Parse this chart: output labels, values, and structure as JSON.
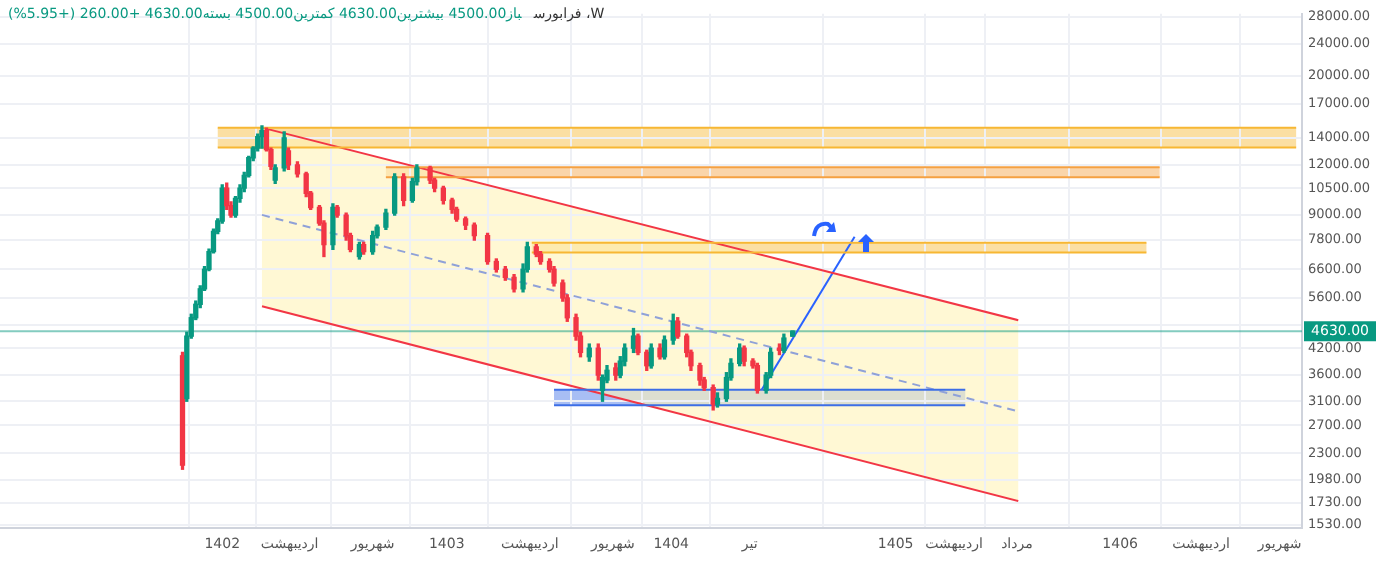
{
  "chart_data": {
    "type": "candlestick",
    "title": "W، فرابورس",
    "subtitle": "باز4500.00 بیشترین4630.00 کمترین4500.00 بسته4630.00 +260.00 (+5.95%)",
    "log": true,
    "grid": true,
    "xlim": [
      1401.01,
      1406.81
    ],
    "xticks": [
      1402,
      {
        "value": 1402.3,
        "label": "اردیبهشت"
      },
      {
        "value": 1402.67,
        "label": "شهریور"
      },
      1403,
      {
        "value": 1403.37,
        "label": "اردیبهشت"
      },
      {
        "value": 1403.74,
        "label": "شهریور"
      },
      1404,
      {
        "value": 1404.35,
        "label": "تیر"
      },
      1405,
      {
        "value": 1405.26,
        "label": "اردیبهشت"
      },
      {
        "value": 1405.54,
        "label": "مرداد"
      },
      1406,
      {
        "value": 1406.36,
        "label": "اردیبهشت"
      },
      {
        "value": 1406.71,
        "label": "شهریور"
      }
    ],
    "ylim": [
      1500,
      28500
    ],
    "yticks": [
      {
        "value": 28000,
        "label": "28000.00"
      },
      {
        "value": 24000,
        "label": "24000.00"
      },
      {
        "value": 20000,
        "label": "20000.00"
      },
      {
        "value": 17000,
        "label": "17000.00"
      },
      {
        "value": 14000,
        "label": "14000.00"
      },
      {
        "value": 12000,
        "label": "12000.00"
      },
      {
        "value": 10500,
        "label": "10500.00"
      },
      {
        "value": 9000,
        "label": "9000.00"
      },
      {
        "value": 7800,
        "label": "7800.00"
      },
      {
        "value": 6600,
        "label": "6600.00"
      },
      {
        "value": 5600,
        "label": "5600.00"
      },
      {
        "value": 4800,
        "label": null
      },
      {
        "value": 4200,
        "label": "4200.00"
      },
      {
        "value": 3600,
        "label": "3600.00"
      },
      {
        "value": 3100,
        "label": "3100.00"
      },
      {
        "value": 2700,
        "label": "2700.00"
      },
      {
        "value": 2300,
        "label": "2300.00"
      },
      {
        "value": 1980,
        "label": "1980.00"
      },
      {
        "value": 1730,
        "label": "1730.00"
      },
      {
        "value": 1530,
        "label": "1530.00"
      }
    ],
    "ref_lines": [
      {
        "axis": "y",
        "value": 4630,
        "label": "4630.00",
        "color": "#089981"
      }
    ],
    "series": [
      {
        "type": "line",
        "x": [
          1401.98,
          1406.784
        ],
        "values": [
          14850,
          14850
        ],
        "color": "#f7b733"
      },
      {
        "type": "line",
        "x": [
          1401.98,
          1406.784
        ],
        "values": [
          13250,
          13250
        ],
        "color": "#f7b733"
      },
      {
        "type": "line",
        "x": [
          1402.729,
          1406.176
        ],
        "values": [
          11830,
          11830
        ],
        "color": "#f5a142"
      },
      {
        "type": "line",
        "x": [
          1402.729,
          1406.176
        ],
        "values": [
          11180,
          11180
        ],
        "color": "#f5a142"
      },
      {
        "type": "line",
        "x": [
          1403.379,
          1406.117
        ],
        "values": [
          7680,
          7680
        ],
        "color": "#f7b733"
      },
      {
        "type": "line",
        "x": [
          1403.379,
          1406.117
        ],
        "values": [
          7260,
          7260
        ],
        "color": "#f7b733"
      },
      {
        "type": "line",
        "x": [
          1403.478,
          1405.31
        ],
        "values": [
          3310,
          3310
        ],
        "color": "#3d6ee6"
      },
      {
        "type": "line",
        "x": [
          1403.478,
          1405.31
        ],
        "values": [
          3030,
          3030
        ],
        "color": "#3d6ee6"
      },
      {
        "type": "line",
        "x": [
          1402.177,
          1405.546
        ],
        "values": [
          14850,
          4930
        ],
        "color": "#f23645"
      },
      {
        "type": "line",
        "x": [
          1402.177,
          1405.546
        ],
        "values": [
          5340,
          1750
        ],
        "color": "#f23645"
      },
      {
        "type": "line",
        "x": [
          1402.177,
          1405.546
        ],
        "values": [
          9010,
          2925
        ],
        "color": "#8fa1d8",
        "line_style": "dashed"
      },
      {
        "type": "line",
        "x": [
          1404.403,
          1404.817
        ],
        "values": [
          3310,
          7950
        ],
        "color": "#2962ff"
      },
      {
        "x": [
          1401.823,
          1401.842,
          1401.862,
          1401.882,
          1401.902,
          1401.921,
          1401.941,
          1401.961,
          1401.98,
          1402.0,
          1402.02,
          1402.039,
          1402.059,
          1402.079,
          1402.098,
          1402.118,
          1402.138,
          1402.158,
          1402.177,
          1402.197,
          1402.217,
          1402.236,
          1402.276,
          1402.295,
          1402.335,
          1402.374,
          1402.394,
          1402.433,
          1402.453,
          1402.493,
          1402.512,
          1402.552,
          1402.571,
          1402.611,
          1402.63,
          1402.67,
          1402.69,
          1402.729,
          1402.768,
          1402.808,
          1402.847,
          1402.867,
          1402.926,
          1402.946,
          1402.985,
          1403.024,
          1403.044,
          1403.084,
          1403.123,
          1403.182,
          1403.221,
          1403.261,
          1403.3,
          1403.34,
          1403.359,
          1403.399,
          1403.418,
          1403.458,
          1403.478,
          1403.517,
          1403.537,
          1403.576,
          1403.596,
          1403.635,
          1403.675,
          1403.694,
          1403.714,
          1403.753,
          1403.773,
          1403.793,
          1403.832,
          1403.852,
          1403.891,
          1403.911,
          1403.95,
          1403.97,
          1404.009,
          1404.029,
          1404.069,
          1404.088,
          1404.128,
          1404.147,
          1404.187,
          1404.206,
          1404.246,
          1404.266,
          1404.305,
          1404.325,
          1404.364,
          1404.384,
          1404.423,
          1404.443,
          1404.482,
          1404.502,
          1404.541
        ],
        "ohlc": [
          [
            4020,
            4100,
            2100,
            2150
          ],
          [
            3150,
            4600,
            3100,
            4500
          ],
          [
            4500,
            5100,
            4450,
            5000
          ],
          [
            5000,
            5500,
            4950,
            5400
          ],
          [
            5400,
            6000,
            5300,
            5900
          ],
          [
            5900,
            6700,
            5850,
            6600
          ],
          [
            6600,
            7400,
            6550,
            7300
          ],
          [
            7300,
            8300,
            7250,
            8200
          ],
          [
            8200,
            8800,
            8100,
            8700
          ],
          [
            8700,
            10700,
            8600,
            10500
          ],
          [
            10500,
            10800,
            9300,
            9500
          ],
          [
            9500,
            9700,
            8900,
            9000
          ],
          [
            9000,
            10000,
            8900,
            9900
          ],
          [
            9900,
            10700,
            9700,
            10500
          ],
          [
            10500,
            11500,
            10300,
            11300
          ],
          [
            11300,
            12600,
            11200,
            12500
          ],
          [
            12500,
            13300,
            12300,
            13200
          ],
          [
            13200,
            14300,
            13000,
            14100
          ],
          [
            14100,
            15000,
            13200,
            14600
          ],
          [
            14600,
            14800,
            13000,
            13100
          ],
          [
            13100,
            13200,
            11700,
            11900
          ],
          [
            11000,
            12000,
            10800,
            11800
          ],
          [
            11800,
            14500,
            11600,
            14000
          ],
          [
            13000,
            13200,
            11700,
            12000
          ],
          [
            12000,
            12200,
            11200,
            11400
          ],
          [
            11400,
            11500,
            10000,
            10200
          ],
          [
            10200,
            10300,
            9300,
            9400
          ],
          [
            9400,
            9500,
            8500,
            8600
          ],
          [
            8600,
            8700,
            7100,
            7600
          ],
          [
            7600,
            9600,
            7400,
            9400
          ],
          [
            9400,
            9500,
            8900,
            9000
          ],
          [
            9000,
            9100,
            7800,
            8000
          ],
          [
            8000,
            8100,
            7300,
            7400
          ],
          [
            7100,
            7700,
            7000,
            7600
          ],
          [
            7600,
            7700,
            7200,
            7300
          ],
          [
            7300,
            8200,
            7200,
            8000
          ],
          [
            8000,
            8500,
            7900,
            8400
          ],
          [
            8400,
            9300,
            8300,
            9100
          ],
          [
            9100,
            11400,
            9000,
            11200
          ],
          [
            11200,
            11400,
            9500,
            9800
          ],
          [
            9800,
            11100,
            9700,
            10900
          ],
          [
            10900,
            12000,
            10700,
            11800
          ],
          [
            11800,
            11900,
            10800,
            11000
          ],
          [
            11000,
            11100,
            10300,
            10500
          ],
          [
            10500,
            10600,
            9600,
            9800
          ],
          [
            9800,
            9900,
            9100,
            9300
          ],
          [
            9300,
            9400,
            8700,
            8800
          ],
          [
            8800,
            8900,
            8300,
            8500
          ],
          [
            8500,
            8600,
            7800,
            8000
          ],
          [
            8000,
            8100,
            6800,
            6900
          ],
          [
            6900,
            7000,
            6500,
            6600
          ],
          [
            6600,
            6700,
            6200,
            6300
          ],
          [
            6300,
            6400,
            5800,
            5900
          ],
          [
            5900,
            6800,
            5800,
            6600
          ],
          [
            6600,
            7700,
            6500,
            7500
          ],
          [
            7500,
            7600,
            7100,
            7200
          ],
          [
            7200,
            7300,
            6800,
            6900
          ],
          [
            6900,
            7000,
            6500,
            6600
          ],
          [
            6600,
            6700,
            6000,
            6100
          ],
          [
            6100,
            6200,
            5500,
            5600
          ],
          [
            5600,
            5700,
            4900,
            5000
          ],
          [
            5000,
            5100,
            4400,
            4500
          ],
          [
            4500,
            4600,
            4000,
            4100
          ],
          [
            4000,
            4300,
            3900,
            4200
          ],
          [
            4200,
            4300,
            3500,
            3600
          ],
          [
            3300,
            3600,
            3100,
            3550
          ],
          [
            3500,
            3800,
            3450,
            3700
          ],
          [
            3750,
            3850,
            3500,
            3600
          ],
          [
            3600,
            4000,
            3550,
            3900
          ],
          [
            3900,
            4300,
            3800,
            4200
          ],
          [
            4200,
            4700,
            4100,
            4500
          ],
          [
            4500,
            4550,
            4050,
            4100
          ],
          [
            4100,
            4150,
            3700,
            3800
          ],
          [
            3800,
            4300,
            3750,
            4200
          ],
          [
            4200,
            4300,
            3950,
            4000
          ],
          [
            4000,
            4500,
            3950,
            4400
          ],
          [
            4400,
            5100,
            4300,
            4900
          ],
          [
            4900,
            5000,
            4450,
            4500
          ],
          [
            4500,
            4550,
            4000,
            4100
          ],
          [
            4100,
            4150,
            3700,
            3800
          ],
          [
            3800,
            3850,
            3400,
            3500
          ],
          [
            3500,
            3550,
            3300,
            3350
          ],
          [
            3350,
            3400,
            2950,
            3050
          ],
          [
            3050,
            3250,
            3000,
            3150
          ],
          [
            3150,
            3650,
            3100,
            3550
          ],
          [
            3550,
            3950,
            3500,
            3850
          ],
          [
            3850,
            4300,
            3800,
            4200
          ],
          [
            4200,
            4250,
            3800,
            3900
          ],
          [
            3900,
            3950,
            3750,
            3800
          ],
          [
            3800,
            3850,
            3250,
            3300
          ],
          [
            3300,
            3650,
            3250,
            3600
          ],
          [
            3600,
            4200,
            3550,
            4100
          ],
          [
            4200,
            4300,
            4050,
            4150
          ],
          [
            4150,
            4550,
            4100,
            4450
          ],
          [
            4500,
            4630,
            4500,
            4630
          ]
        ],
        "colors": [
          "#f23645",
          "#089981",
          "#089981",
          "#089981",
          "#089981",
          "#089981",
          "#089981",
          "#089981",
          "#089981",
          "#089981",
          "#f23645",
          "#f23645",
          "#089981",
          "#089981",
          "#089981",
          "#089981",
          "#089981",
          "#089981",
          "#089981",
          "#f23645",
          "#f23645",
          "#089981",
          "#089981",
          "#f23645",
          "#f23645",
          "#f23645",
          "#f23645",
          "#f23645",
          "#f23645",
          "#089981",
          "#f23645",
          "#f23645",
          "#f23645",
          "#089981",
          "#f23645",
          "#089981",
          "#089981",
          "#089981",
          "#089981",
          "#f23645",
          "#089981",
          "#089981",
          "#f23645",
          "#f23645",
          "#f23645",
          "#f23645",
          "#f23645",
          "#f23645",
          "#f23645",
          "#f23645",
          "#f23645",
          "#f23645",
          "#f23645",
          "#089981",
          "#089981",
          "#f23645",
          "#f23645",
          "#f23645",
          "#f23645",
          "#f23645",
          "#f23645",
          "#f23645",
          "#f23645",
          "#089981",
          "#f23645",
          "#089981",
          "#089981",
          "#f23645",
          "#089981",
          "#089981",
          "#089981",
          "#f23645",
          "#f23645",
          "#089981",
          "#f23645",
          "#089981",
          "#089981",
          "#f23645",
          "#f23645",
          "#f23645",
          "#f23645",
          "#f23645",
          "#f23645",
          "#089981",
          "#089981",
          "#089981",
          "#089981",
          "#f23645",
          "#f23645",
          "#f23645",
          "#089981",
          "#089981",
          "#f23645",
          "#089981",
          "#089981"
        ]
      }
    ]
  }
}
